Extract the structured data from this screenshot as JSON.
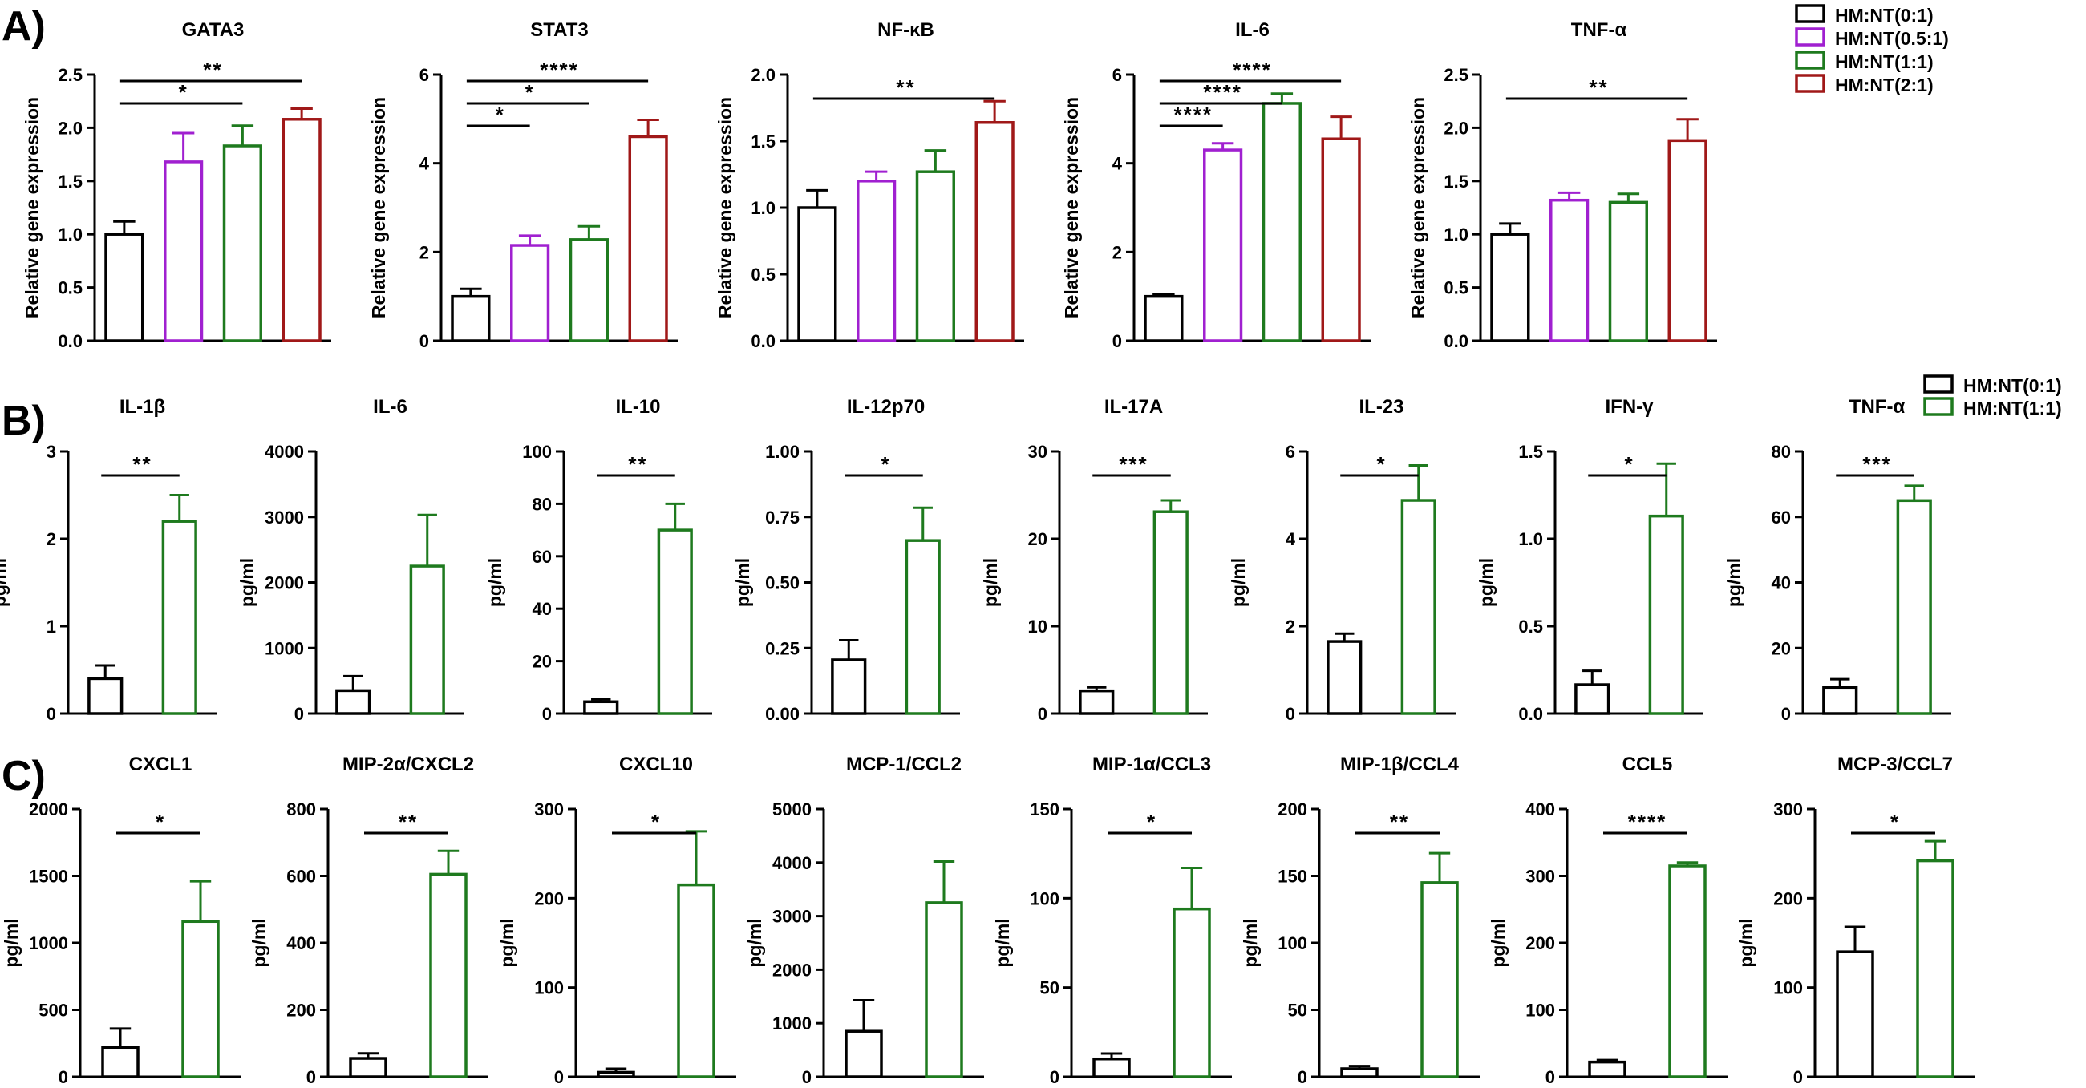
{
  "panel_labels": [
    "A)",
    "B)",
    "C)"
  ],
  "colors": {
    "HM:NT(0:1)": "#000000",
    "HM:NT(0.5:1)": "#a020d0",
    "HM:NT(1:1)": "#1e7a1e",
    "HM:NT(2:1)": "#a01818"
  },
  "legends": {
    "A": [
      "HM:NT(0:1)",
      "HM:NT(0.5:1)",
      "HM:NT(1:1)",
      "HM:NT(2:1)"
    ],
    "B": [
      "HM:NT(0:1)",
      "HM:NT(1:1)"
    ]
  },
  "chart_data": [
    {
      "panel": "A",
      "type": "bar",
      "title": "GATA3",
      "ylabel": "Relative gene expression",
      "ylim": [
        0,
        2.5
      ],
      "ticks": [
        "0.0",
        "0.5",
        "1.0",
        "1.5",
        "2.0",
        "2.5"
      ],
      "categories": [
        "HM:NT(0:1)",
        "HM:NT(0.5:1)",
        "HM:NT(1:1)",
        "HM:NT(2:1)"
      ],
      "values": [
        1.0,
        1.68,
        1.83,
        2.08
      ],
      "errors": [
        0.12,
        0.27,
        0.19,
        0.1
      ],
      "significance": [
        {
          "from": 0,
          "to": 2,
          "label": "*"
        },
        {
          "from": 0,
          "to": 3,
          "label": "**"
        }
      ]
    },
    {
      "panel": "A",
      "type": "bar",
      "title": "STAT3",
      "ylabel": "Relative gene expression",
      "ylim": [
        0,
        6
      ],
      "ticks": [
        "0",
        "2",
        "4",
        "6"
      ],
      "categories": [
        "HM:NT(0:1)",
        "HM:NT(0.5:1)",
        "HM:NT(1:1)",
        "HM:NT(2:1)"
      ],
      "values": [
        1.0,
        2.15,
        2.28,
        4.6
      ],
      "errors": [
        0.17,
        0.22,
        0.3,
        0.38
      ],
      "significance": [
        {
          "from": 0,
          "to": 1,
          "label": "*"
        },
        {
          "from": 0,
          "to": 2,
          "label": "*"
        },
        {
          "from": 0,
          "to": 3,
          "label": "****"
        }
      ]
    },
    {
      "panel": "A",
      "type": "bar",
      "title": "NF-κB",
      "ylabel": "Relative gene expression",
      "ylim": [
        0,
        2.0
      ],
      "ticks": [
        "0.0",
        "0.5",
        "1.0",
        "1.5",
        "2.0"
      ],
      "categories": [
        "HM:NT(0:1)",
        "HM:NT(0.5:1)",
        "HM:NT(1:1)",
        "HM:NT(2:1)"
      ],
      "values": [
        1.0,
        1.2,
        1.27,
        1.64
      ],
      "errors": [
        0.13,
        0.07,
        0.16,
        0.16
      ],
      "significance": [
        {
          "from": 0,
          "to": 3,
          "label": "**"
        }
      ]
    },
    {
      "panel": "A",
      "type": "bar",
      "title": "IL-6",
      "ylabel": "Relative gene expression",
      "ylim": [
        0,
        6
      ],
      "ticks": [
        "0",
        "2",
        "4",
        "6"
      ],
      "categories": [
        "HM:NT(0:1)",
        "HM:NT(0.5:1)",
        "HM:NT(1:1)",
        "HM:NT(2:1)"
      ],
      "values": [
        1.0,
        4.3,
        5.35,
        4.55
      ],
      "errors": [
        0.05,
        0.15,
        0.22,
        0.5
      ],
      "significance": [
        {
          "from": 0,
          "to": 1,
          "label": "****"
        },
        {
          "from": 0,
          "to": 2,
          "label": "****"
        },
        {
          "from": 0,
          "to": 3,
          "label": "****"
        }
      ]
    },
    {
      "panel": "A",
      "type": "bar",
      "title": "TNF-α",
      "ylabel": "Relative gene expression",
      "ylim": [
        0,
        2.5
      ],
      "ticks": [
        "0.0",
        "0.5",
        "1.0",
        "1.5",
        "2.0",
        "2.5"
      ],
      "categories": [
        "HM:NT(0:1)",
        "HM:NT(0.5:1)",
        "HM:NT(1:1)",
        "HM:NT(2:1)"
      ],
      "values": [
        1.0,
        1.32,
        1.3,
        1.88
      ],
      "errors": [
        0.1,
        0.07,
        0.08,
        0.2
      ],
      "significance": [
        {
          "from": 0,
          "to": 3,
          "label": "**"
        }
      ]
    },
    {
      "panel": "B",
      "type": "bar",
      "title": "IL-1β",
      "ylabel": "pg/ml",
      "ylim": [
        0,
        3
      ],
      "ticks": [
        "0",
        "1",
        "2",
        "3"
      ],
      "categories": [
        "HM:NT(0:1)",
        "HM:NT(1:1)"
      ],
      "values": [
        0.4,
        2.2
      ],
      "errors": [
        0.15,
        0.3
      ],
      "significance": [
        {
          "from": 0,
          "to": 1,
          "label": "**"
        }
      ]
    },
    {
      "panel": "B",
      "type": "bar",
      "title": "IL-6",
      "ylabel": "pg/ml",
      "ylim": [
        0,
        4000
      ],
      "ticks": [
        "0",
        "1000",
        "2000",
        "3000",
        "4000"
      ],
      "categories": [
        "HM:NT(0:1)",
        "HM:NT(1:1)"
      ],
      "values": [
        350,
        2250
      ],
      "errors": [
        220,
        780
      ],
      "significance": []
    },
    {
      "panel": "B",
      "type": "bar",
      "title": "IL-10",
      "ylabel": "pg/ml",
      "ylim": [
        0,
        100
      ],
      "ticks": [
        "0",
        "20",
        "40",
        "60",
        "80",
        "100"
      ],
      "categories": [
        "HM:NT(0:1)",
        "HM:NT(1:1)"
      ],
      "values": [
        4.5,
        70
      ],
      "errors": [
        1.0,
        10
      ],
      "significance": [
        {
          "from": 0,
          "to": 1,
          "label": "**"
        }
      ]
    },
    {
      "panel": "B",
      "type": "bar",
      "title": "IL-12p70",
      "ylabel": "pg/ml",
      "ylim": [
        0,
        1.0
      ],
      "ticks": [
        "0.00",
        "0.25",
        "0.50",
        "0.75",
        "1.00"
      ],
      "categories": [
        "HM:NT(0:1)",
        "HM:NT(1:1)"
      ],
      "values": [
        0.205,
        0.66
      ],
      "errors": [
        0.075,
        0.125
      ],
      "significance": [
        {
          "from": 0,
          "to": 1,
          "label": "*"
        }
      ]
    },
    {
      "panel": "B",
      "type": "bar",
      "title": "IL-17A",
      "ylabel": "pg/ml",
      "ylim": [
        0,
        30
      ],
      "ticks": [
        "0",
        "10",
        "20",
        "30"
      ],
      "categories": [
        "HM:NT(0:1)",
        "HM:NT(1:1)"
      ],
      "values": [
        2.6,
        23.1
      ],
      "errors": [
        0.4,
        1.3
      ],
      "significance": [
        {
          "from": 0,
          "to": 1,
          "label": "***"
        }
      ]
    },
    {
      "panel": "B",
      "type": "bar",
      "title": "IL-23",
      "ylabel": "pg/ml",
      "ylim": [
        0,
        6
      ],
      "ticks": [
        "0",
        "2",
        "4",
        "6"
      ],
      "categories": [
        "HM:NT(0:1)",
        "HM:NT(1:1)"
      ],
      "values": [
        1.65,
        4.88
      ],
      "errors": [
        0.18,
        0.8
      ],
      "significance": [
        {
          "from": 0,
          "to": 1,
          "label": "*"
        }
      ]
    },
    {
      "panel": "B",
      "type": "bar",
      "title": "IFN-γ",
      "ylabel": "pg/ml",
      "ylim": [
        0,
        1.5
      ],
      "ticks": [
        "0.0",
        "0.5",
        "1.0",
        "1.5"
      ],
      "categories": [
        "HM:NT(0:1)",
        "HM:NT(1:1)"
      ],
      "values": [
        0.165,
        1.13
      ],
      "errors": [
        0.08,
        0.3
      ],
      "significance": [
        {
          "from": 0,
          "to": 1,
          "label": "*"
        }
      ]
    },
    {
      "panel": "B",
      "type": "bar",
      "title": "TNF-α",
      "ylabel": "pg/ml",
      "ylim": [
        0,
        80
      ],
      "ticks": [
        "0",
        "20",
        "40",
        "60",
        "80"
      ],
      "categories": [
        "HM:NT(0:1)",
        "HM:NT(1:1)"
      ],
      "values": [
        8,
        65
      ],
      "errors": [
        2.5,
        4.5
      ],
      "significance": [
        {
          "from": 0,
          "to": 1,
          "label": "***"
        }
      ]
    },
    {
      "panel": "C",
      "type": "bar",
      "title": "CXCL1",
      "ylabel": "pg/ml",
      "ylim": [
        0,
        2000
      ],
      "ticks": [
        "0",
        "500",
        "1000",
        "1500",
        "2000"
      ],
      "categories": [
        "HM:NT(0:1)",
        "HM:NT(1:1)"
      ],
      "values": [
        220,
        1160
      ],
      "errors": [
        140,
        300
      ],
      "significance": [
        {
          "from": 0,
          "to": 1,
          "label": "*"
        }
      ]
    },
    {
      "panel": "C",
      "type": "bar",
      "title": "MIP-2α/CXCL2",
      "ylabel": "pg/ml",
      "ylim": [
        0,
        800
      ],
      "ticks": [
        "0",
        "200",
        "400",
        "600",
        "800"
      ],
      "categories": [
        "HM:NT(0:1)",
        "HM:NT(1:1)"
      ],
      "values": [
        55,
        605
      ],
      "errors": [
        15,
        70
      ],
      "significance": [
        {
          "from": 0,
          "to": 1,
          "label": "**"
        }
      ]
    },
    {
      "panel": "C",
      "type": "bar",
      "title": "CXCL10",
      "ylabel": "pg/ml",
      "ylim": [
        0,
        300
      ],
      "ticks": [
        "0",
        "100",
        "200",
        "300"
      ],
      "categories": [
        "HM:NT(0:1)",
        "HM:NT(1:1)"
      ],
      "values": [
        5,
        215
      ],
      "errors": [
        4,
        60
      ],
      "significance": [
        {
          "from": 0,
          "to": 1,
          "label": "*"
        }
      ]
    },
    {
      "panel": "C",
      "type": "bar",
      "title": "MCP-1/CCL2",
      "ylabel": "pg/ml",
      "ylim": [
        0,
        5000
      ],
      "ticks": [
        "0",
        "1000",
        "2000",
        "3000",
        "4000",
        "5000"
      ],
      "categories": [
        "HM:NT(0:1)",
        "HM:NT(1:1)"
      ],
      "values": [
        850,
        3250
      ],
      "errors": [
        580,
        770
      ],
      "significance": []
    },
    {
      "panel": "C",
      "type": "bar",
      "title": "MIP-1α/CCL3",
      "ylabel": "pg/ml",
      "ylim": [
        0,
        150
      ],
      "ticks": [
        "0",
        "50",
        "100",
        "150"
      ],
      "categories": [
        "HM:NT(0:1)",
        "HM:NT(1:1)"
      ],
      "values": [
        10,
        94
      ],
      "errors": [
        3,
        23
      ],
      "significance": [
        {
          "from": 0,
          "to": 1,
          "label": "*"
        }
      ]
    },
    {
      "panel": "C",
      "type": "bar",
      "title": "MIP-1β/CCL4",
      "ylabel": "pg/ml",
      "ylim": [
        0,
        200
      ],
      "ticks": [
        "0",
        "50",
        "100",
        "150",
        "200"
      ],
      "categories": [
        "HM:NT(0:1)",
        "HM:NT(1:1)"
      ],
      "values": [
        6,
        145
      ],
      "errors": [
        2,
        22
      ],
      "significance": [
        {
          "from": 0,
          "to": 1,
          "label": "**"
        }
      ]
    },
    {
      "panel": "C",
      "type": "bar",
      "title": "CCL5",
      "ylabel": "pg/ml",
      "ylim": [
        0,
        400
      ],
      "ticks": [
        "0",
        "100",
        "200",
        "300",
        "400"
      ],
      "categories": [
        "HM:NT(0:1)",
        "HM:NT(1:1)"
      ],
      "values": [
        22,
        315
      ],
      "errors": [
        3,
        5
      ],
      "significance": [
        {
          "from": 0,
          "to": 1,
          "label": "****"
        }
      ]
    },
    {
      "panel": "C",
      "type": "bar",
      "title": "MCP-3/CCL7",
      "ylabel": "pg/ml",
      "ylim": [
        0,
        300
      ],
      "ticks": [
        "0",
        "100",
        "200",
        "300"
      ],
      "categories": [
        "HM:NT(0:1)",
        "HM:NT(1:1)"
      ],
      "values": [
        140,
        242
      ],
      "errors": [
        28,
        22
      ],
      "significance": [
        {
          "from": 0,
          "to": 1,
          "label": "*"
        }
      ]
    }
  ]
}
